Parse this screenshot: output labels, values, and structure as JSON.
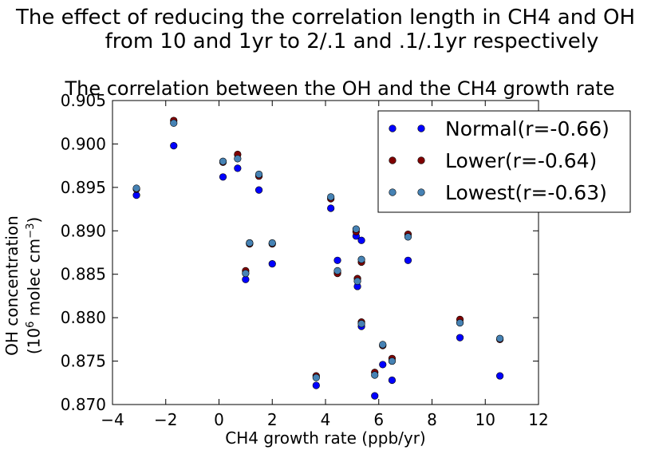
{
  "chart_data": {
    "type": "scatter",
    "suptitle": [
      "The effect of reducing the correlation length in CH4 and OH",
      "from 10 and 1yr to 2/.1 and .1/.1yr respectively"
    ],
    "title": "The correlation between the OH and the CH4 growth rate",
    "xlabel": "CH4 growth rate (ppb/yr)",
    "ylabel_line1": "OH concentration",
    "ylabel_line2_prefix": "(10",
    "ylabel_line2_exp1": "6",
    "ylabel_line2_mid": " molec cm",
    "ylabel_line2_exp2": "−3",
    "ylabel_line2_suffix": ")",
    "xlim": [
      -4,
      12
    ],
    "ylim": [
      0.87,
      0.905
    ],
    "xticks": [
      "−4",
      "−2",
      "0",
      "2",
      "4",
      "6",
      "8",
      "10",
      "12"
    ],
    "yticks": [
      "0.870",
      "0.875",
      "0.880",
      "0.885",
      "0.890",
      "0.895",
      "0.900",
      "0.905"
    ],
    "legend_position": "top-right",
    "grid": false,
    "series": [
      {
        "name": "Normal(r=-0.66)",
        "color": "#0000ff",
        "points": [
          [
            -3.1,
            0.8941
          ],
          [
            -1.7,
            0.8998
          ],
          [
            0.15,
            0.8962
          ],
          [
            0.7,
            0.8972
          ],
          [
            1.5,
            0.8947
          ],
          [
            1.0,
            0.8844
          ],
          [
            1.15,
            0.8886
          ],
          [
            2.0,
            0.8862
          ],
          [
            3.65,
            0.8722
          ],
          [
            4.2,
            0.8926
          ],
          [
            4.45,
            0.8866
          ],
          [
            4.45,
            0.8852
          ],
          [
            5.2,
            0.8836
          ],
          [
            5.15,
            0.8894
          ],
          [
            5.35,
            0.8889
          ],
          [
            5.35,
            0.879
          ],
          [
            5.85,
            0.871
          ],
          [
            6.15,
            0.8746
          ],
          [
            6.5,
            0.8728
          ],
          [
            7.1,
            0.8866
          ],
          [
            9.05,
            0.8777
          ],
          [
            10.55,
            0.8733
          ]
        ]
      },
      {
        "name": "Lower(r=-0.64)",
        "color": "#800000",
        "points": [
          [
            -3.1,
            0.8948
          ],
          [
            -1.7,
            0.9027
          ],
          [
            0.15,
            0.8979
          ],
          [
            0.7,
            0.8988
          ],
          [
            1.5,
            0.8963
          ],
          [
            1.0,
            0.8854
          ],
          [
            1.15,
            0.8885
          ],
          [
            2.0,
            0.8885
          ],
          [
            3.65,
            0.8733
          ],
          [
            4.2,
            0.8937
          ],
          [
            4.45,
            0.8851
          ],
          [
            5.2,
            0.8845
          ],
          [
            5.15,
            0.8899
          ],
          [
            5.35,
            0.8864
          ],
          [
            5.35,
            0.8795
          ],
          [
            5.85,
            0.8737
          ],
          [
            6.15,
            0.8768
          ],
          [
            6.5,
            0.8753
          ],
          [
            7.1,
            0.8896
          ],
          [
            9.05,
            0.8798
          ],
          [
            10.55,
            0.8775
          ]
        ]
      },
      {
        "name": "Lowest(r=-0.63)",
        "color": "#4682b4",
        "points": [
          [
            -3.1,
            0.8949
          ],
          [
            -1.7,
            0.9024
          ],
          [
            0.15,
            0.898
          ],
          [
            0.7,
            0.8983
          ],
          [
            1.5,
            0.8965
          ],
          [
            1.0,
            0.8851
          ],
          [
            1.15,
            0.8886
          ],
          [
            2.0,
            0.8886
          ],
          [
            3.65,
            0.8731
          ],
          [
            4.2,
            0.8939
          ],
          [
            4.45,
            0.8854
          ],
          [
            5.2,
            0.8842
          ],
          [
            5.15,
            0.8902
          ],
          [
            5.35,
            0.8867
          ],
          [
            5.35,
            0.8793
          ],
          [
            5.85,
            0.8734
          ],
          [
            6.15,
            0.8769
          ],
          [
            6.5,
            0.875
          ],
          [
            7.1,
            0.8893
          ],
          [
            9.05,
            0.8794
          ],
          [
            10.55,
            0.8776
          ]
        ]
      }
    ]
  }
}
